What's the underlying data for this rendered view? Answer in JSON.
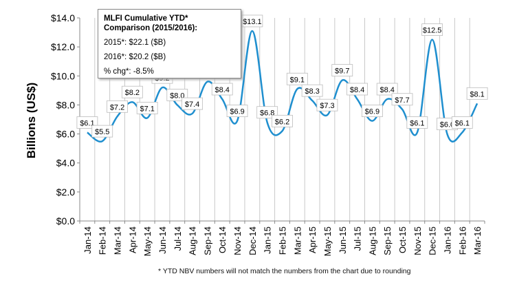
{
  "chart_data": {
    "type": "line",
    "ylabel": "Billions (US$)",
    "ylim": [
      0,
      14
    ],
    "yticks": [
      "$0.0",
      "$2.0",
      "$4.0",
      "$6.0",
      "$8.0",
      "$10.0",
      "$12.0",
      "$14.0"
    ],
    "ytick_values": [
      0,
      2,
      4,
      6,
      8,
      10,
      12,
      14
    ],
    "grid": "vertical",
    "line_color": "#1f8fcf",
    "categories": [
      "Jan-14",
      "Feb-14",
      "Mar-14",
      "Apr-14",
      "May-14",
      "Jun-14",
      "Jul-14",
      "Aug-14",
      "Sep-14",
      "Oct-14",
      "Nov-14",
      "Dec-14",
      "Jan-15",
      "Feb-15",
      "Mar-15",
      "Apr-15",
      "May-15",
      "Jun-15",
      "Jul-15",
      "Aug-15",
      "Sep-15",
      "Oct-15",
      "Nov-15",
      "Dec-15",
      "Jan-16",
      "Feb-16",
      "Mar-16"
    ],
    "values": [
      6.1,
      5.5,
      7.2,
      8.2,
      7.1,
      9.2,
      8.0,
      7.4,
      9.6,
      8.4,
      6.9,
      13.1,
      6.8,
      6.2,
      9.1,
      8.3,
      7.3,
      9.7,
      8.4,
      6.9,
      8.4,
      7.7,
      6.1,
      12.5,
      6.0,
      6.1,
      8.1
    ],
    "data_labels": [
      "$6.1",
      "$5.5",
      "$7.2",
      "$8.2",
      "$7.1",
      "$9.2",
      "$8.0",
      "$7.4",
      "$9.6",
      "$8.4",
      "$6.9",
      "$13.1",
      "$6.8",
      "$6.2",
      "$9.1",
      "$8.3",
      "$7.3",
      "$9.7",
      "$8.4",
      "$6.9",
      "$8.4",
      "$7.7",
      "$6.1",
      "$12.5",
      "$6.0",
      "$6.1",
      "$8.1"
    ],
    "annotation": {
      "title": "MLFI Cumulative YTD* Comparison (2015/2016):",
      "lines": [
        "2015*: $22.1 ($B)",
        "2016*: $20.2  ($B)",
        "% chg*: -8.5%"
      ]
    },
    "footnote": "*  YTD NBV numbers will not match the numbers from the chart due to rounding"
  }
}
